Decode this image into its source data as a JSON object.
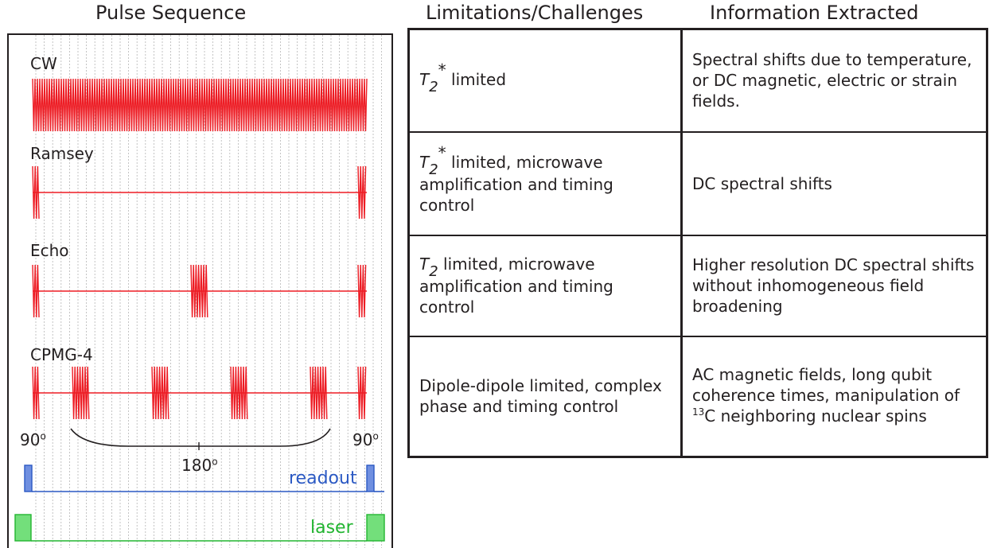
{
  "headers": {
    "pulse_sequence": "Pulse Sequence",
    "limitations": "Limitations/Challenges",
    "information": "Information Extracted"
  },
  "sequences": [
    {
      "label": "CW"
    },
    {
      "label": "Ramsey"
    },
    {
      "label": "Echo"
    },
    {
      "label": "CPMG-4"
    }
  ],
  "angles": {
    "left": "90",
    "right": "90",
    "middle": "180",
    "degree": "o"
  },
  "signals": {
    "readout": "readout",
    "laser": "laser"
  },
  "rows": [
    {
      "lim_symbol": "T",
      "lim_sub": "2",
      "lim_sup": "*",
      "lim_rest": " limited",
      "info": "Spectral shifts due to temperature, or DC magnetic, electric or strain fields."
    },
    {
      "lim_symbol": "T",
      "lim_sub": "2",
      "lim_sup": "*",
      "lim_rest": " limited, microwave amplification and timing control",
      "info": "DC spectral shifts"
    },
    {
      "lim_symbol": "T",
      "lim_sub": "2",
      "lim_sup": "",
      "lim_rest": " limited, microwave amplification and timing control",
      "info": "Higher resolution DC spectral shifts without inhomogeneous field broadening"
    },
    {
      "lim_text": "Dipole-dipole limited, complex phase and timing control",
      "info_pre": "AC magnetic fields, long qubit coherence times, manipulation of ",
      "info_sup": "13",
      "info_post": "C neighboring nuclear spins"
    }
  ],
  "colors": {
    "pulse": "#ed1c24",
    "readout_stroke": "#2b59c3",
    "readout_fill": "#6f8fe0",
    "laser_stroke": "#22b531",
    "laser_fill": "#73df7b",
    "grid": "#b5b5b5",
    "text": "#231f20"
  }
}
